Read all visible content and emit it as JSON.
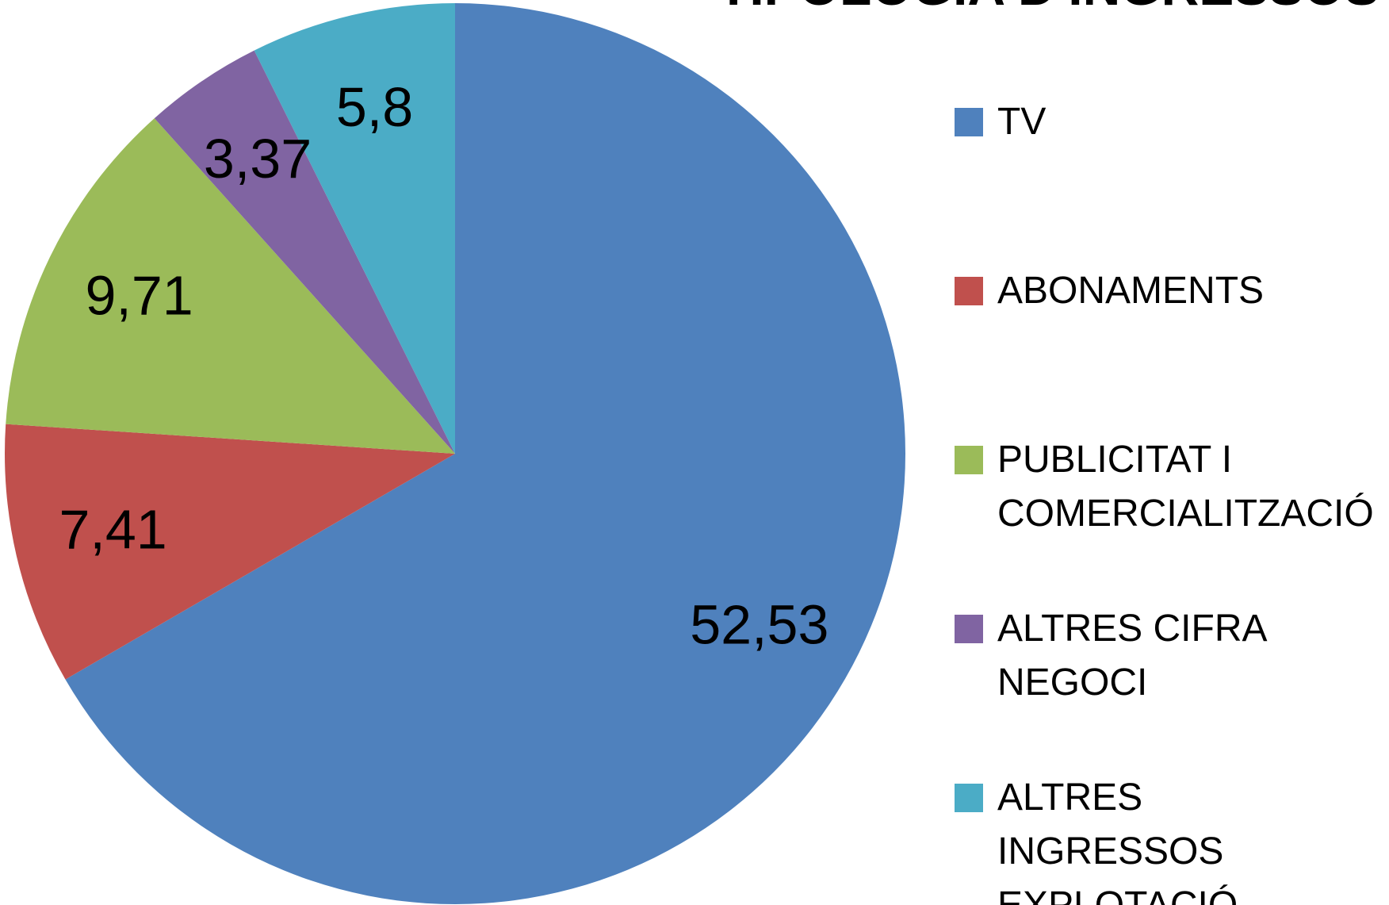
{
  "chart_data": {
    "type": "pie",
    "title": "TIPOLOGIA D'INGRESSOS",
    "categories": [
      "TV",
      "ABONAMENTS",
      "PUBLICITAT I COMERCIALITZACIÓ",
      "ALTRES CIFRA NEGOCI",
      "ALTRES INGRESSOS EXPLOTACIÓ"
    ],
    "values": [
      52.53,
      7.41,
      9.71,
      3.37,
      5.8
    ],
    "value_labels": [
      "52,53",
      "7,41",
      "9,71",
      "3,37",
      "5,8"
    ],
    "colors": [
      "#4f81bd",
      "#c0504d",
      "#9bbb59",
      "#8064a2",
      "#4bacc6"
    ],
    "legend": "right"
  }
}
